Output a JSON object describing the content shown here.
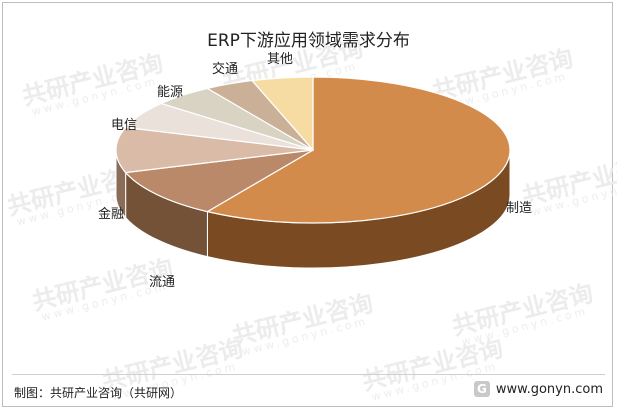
{
  "chart_data": {
    "type": "pie",
    "title": "ERP下游应用领域需求分布",
    "slices": [
      {
        "label": "制造",
        "value": 59,
        "color": "#d38b4c",
        "side": "#7a4a22"
      },
      {
        "label": "流通",
        "value": 11,
        "color": "#b9896a",
        "side": "#745238"
      },
      {
        "label": "金融",
        "value": 10,
        "color": "#d9bba8",
        "side": "#8a6c58"
      },
      {
        "label": "电信",
        "value": 6,
        "color": "#e9e1da",
        "side": "#9a918a"
      },
      {
        "label": "能源",
        "value": 5,
        "color": "#d8d3c3",
        "side": "#8f8a7b"
      },
      {
        "label": "交通",
        "value": 4,
        "color": "#c9b096",
        "side": "#84705b"
      },
      {
        "label": "其他",
        "value": 5,
        "color": "#f6dca2",
        "side": "#a39063"
      }
    ]
  },
  "footer": {
    "source": "制图：共研产业咨询（共研网）",
    "website": "www.gonyn.com"
  },
  "watermark": {
    "text": "共研产业咨询",
    "url": "www.gonyn.com",
    "logo_glyph": "G"
  }
}
